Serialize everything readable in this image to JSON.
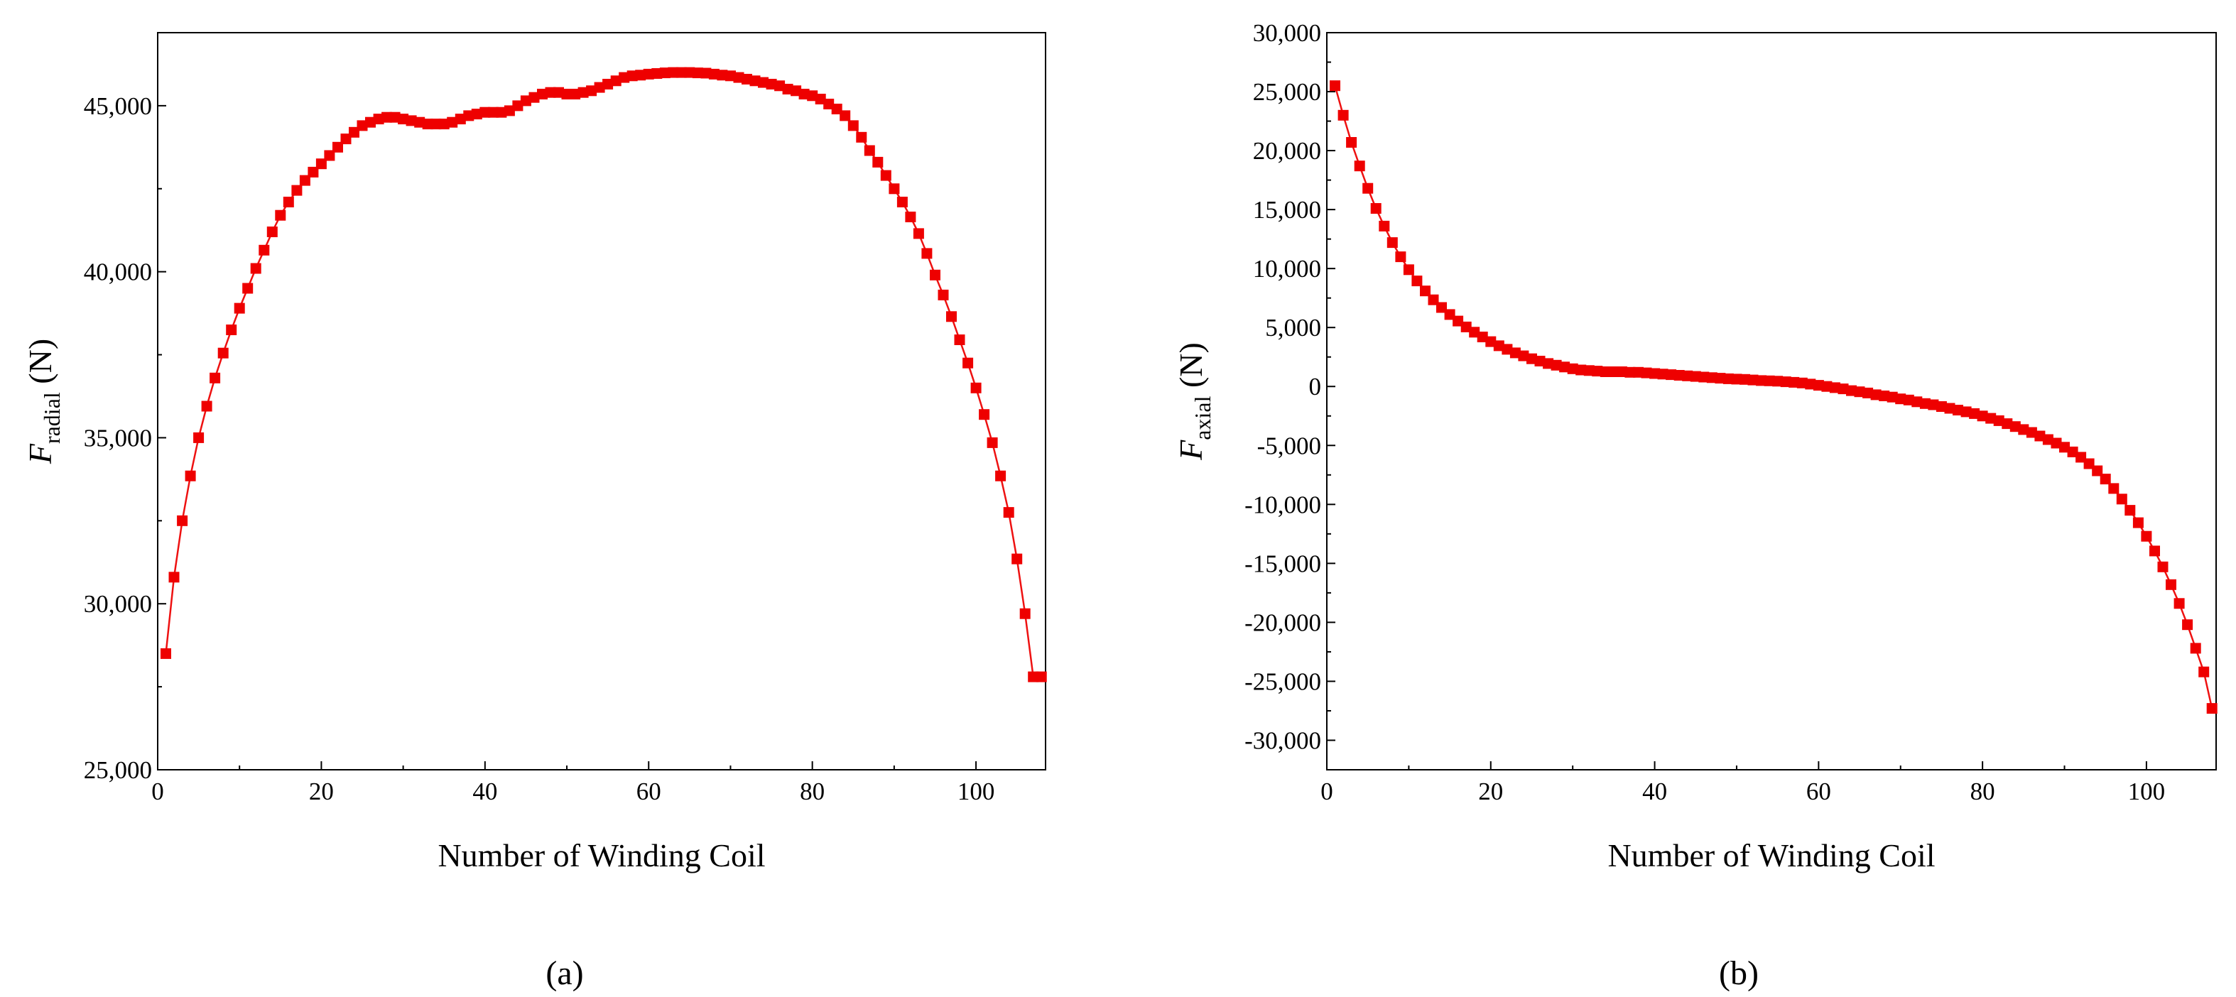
{
  "chart_data": [
    {
      "type": "line",
      "panel_label": "(a)",
      "xlabel": "Number of Winding Coil",
      "ylabel_main": "F",
      "ylabel_sub": "radial",
      "ylabel_unit": " (N)",
      "xlim": [
        0,
        108.5
      ],
      "ylim": [
        25000,
        47200
      ],
      "xticks": [
        0,
        20,
        40,
        60,
        80,
        100
      ],
      "xtick_labels": [
        "0",
        "20",
        "40",
        "60",
        "80",
        "100"
      ],
      "yticks": [
        25000,
        30000,
        35000,
        40000,
        45000
      ],
      "ytick_labels": [
        "25,000",
        "30,000",
        "35,000",
        "40,000",
        "45,000"
      ],
      "series_color": "#ee1111",
      "x": [
        1,
        2,
        3,
        4,
        5,
        6,
        7,
        8,
        9,
        10,
        11,
        12,
        13,
        14,
        15,
        16,
        17,
        18,
        19,
        20,
        21,
        22,
        23,
        24,
        25,
        26,
        27,
        28,
        29,
        30,
        31,
        32,
        33,
        34,
        35,
        36,
        37,
        38,
        39,
        40,
        41,
        42,
        43,
        44,
        45,
        46,
        47,
        48,
        49,
        50,
        51,
        52,
        53,
        54,
        55,
        56,
        57,
        58,
        59,
        60,
        61,
        62,
        63,
        64,
        65,
        66,
        67,
        68,
        69,
        70,
        71,
        72,
        73,
        74,
        75,
        76,
        77,
        78,
        79,
        80,
        81,
        82,
        83,
        84,
        85,
        86,
        87,
        88,
        89,
        90,
        91,
        92,
        93,
        94,
        95,
        96,
        97,
        98,
        99,
        100,
        101,
        102,
        103,
        104,
        105,
        106,
        107,
        108
      ],
      "y": [
        28500,
        30800,
        32500,
        33850,
        35000,
        35950,
        36800,
        37550,
        38250,
        38900,
        39500,
        40100,
        40650,
        41200,
        41700,
        42100,
        42450,
        42750,
        43000,
        43250,
        43500,
        43750,
        44000,
        44200,
        44400,
        44500,
        44600,
        44650,
        44650,
        44600,
        44550,
        44500,
        44450,
        44450,
        44450,
        44500,
        44600,
        44700,
        44750,
        44800,
        44800,
        44800,
        44850,
        45000,
        45150,
        45250,
        45350,
        45400,
        45400,
        45350,
        45350,
        45400,
        45450,
        45550,
        45650,
        45750,
        45850,
        45900,
        45920,
        45950,
        45970,
        45990,
        46000,
        46000,
        46000,
        45990,
        45980,
        45950,
        45920,
        45900,
        45850,
        45800,
        45750,
        45700,
        45650,
        45600,
        45500,
        45450,
        45350,
        45300,
        45200,
        45050,
        44900,
        44700,
        44400,
        44050,
        43650,
        43300,
        42900,
        42500,
        42100,
        41650,
        41150,
        40550,
        39900,
        39300,
        38650,
        37950,
        37250,
        36500,
        35700,
        34850,
        33850,
        32750,
        31350,
        29700,
        27800,
        27800
      ]
    },
    {
      "type": "line",
      "panel_label": "(b)",
      "xlabel": "Number of Winding Coil",
      "ylabel_main": "F",
      "ylabel_sub": "axial",
      "ylabel_unit": " (N)",
      "xlim": [
        0,
        108.5
      ],
      "ylim": [
        -32500,
        30000
      ],
      "xticks": [
        0,
        20,
        40,
        60,
        80,
        100
      ],
      "xtick_labels": [
        "0",
        "20",
        "40",
        "60",
        "80",
        "100"
      ],
      "yticks": [
        30000,
        25000,
        20000,
        15000,
        10000,
        5000,
        0,
        -5000,
        -10000,
        -15000,
        -20000,
        -25000,
        -30000
      ],
      "ytick_labels": [
        "30,000",
        "25,000",
        "20,000",
        "15,000",
        "10,000",
        "5,000",
        "0",
        "-5,000",
        "-10,000",
        "-15,000",
        "-20,000",
        "-25,000",
        "-30,000"
      ],
      "series_color": "#ee1111",
      "x": [
        1,
        2,
        3,
        4,
        5,
        6,
        7,
        8,
        9,
        10,
        11,
        12,
        13,
        14,
        15,
        16,
        17,
        18,
        19,
        20,
        21,
        22,
        23,
        24,
        25,
        26,
        27,
        28,
        29,
        30,
        31,
        32,
        33,
        34,
        35,
        36,
        37,
        38,
        39,
        40,
        41,
        42,
        43,
        44,
        45,
        46,
        47,
        48,
        49,
        50,
        51,
        52,
        53,
        54,
        55,
        56,
        57,
        58,
        59,
        60,
        61,
        62,
        63,
        64,
        65,
        66,
        67,
        68,
        69,
        70,
        71,
        72,
        73,
        74,
        75,
        76,
        77,
        78,
        79,
        80,
        81,
        82,
        83,
        84,
        85,
        86,
        87,
        88,
        89,
        90,
        91,
        92,
        93,
        94,
        95,
        96,
        97,
        98,
        99,
        100,
        101,
        102,
        103,
        104,
        105,
        106,
        107,
        108
      ],
      "y": [
        25500,
        23000,
        20700,
        18700,
        16800,
        15100,
        13600,
        12200,
        11000,
        9900,
        8950,
        8100,
        7350,
        6700,
        6100,
        5550,
        5050,
        4600,
        4200,
        3800,
        3450,
        3150,
        2850,
        2600,
        2350,
        2150,
        1950,
        1800,
        1650,
        1500,
        1400,
        1350,
        1300,
        1250,
        1250,
        1250,
        1200,
        1200,
        1150,
        1100,
        1050,
        1000,
        950,
        900,
        850,
        800,
        750,
        700,
        650,
        620,
        600,
        550,
        500,
        480,
        450,
        400,
        350,
        300,
        200,
        100,
        0,
        -100,
        -200,
        -350,
        -450,
        -550,
        -700,
        -800,
        -900,
        -1050,
        -1150,
        -1300,
        -1450,
        -1550,
        -1700,
        -1850,
        -2000,
        -2150,
        -2300,
        -2500,
        -2700,
        -2900,
        -3150,
        -3400,
        -3650,
        -3900,
        -4200,
        -4500,
        -4800,
        -5150,
        -5550,
        -6000,
        -6550,
        -7150,
        -7850,
        -8650,
        -9550,
        -10500,
        -11550,
        -12700,
        -13950,
        -15300,
        -16800,
        -18400,
        -20200,
        -22200,
        -24200,
        -27300
      ]
    }
  ]
}
